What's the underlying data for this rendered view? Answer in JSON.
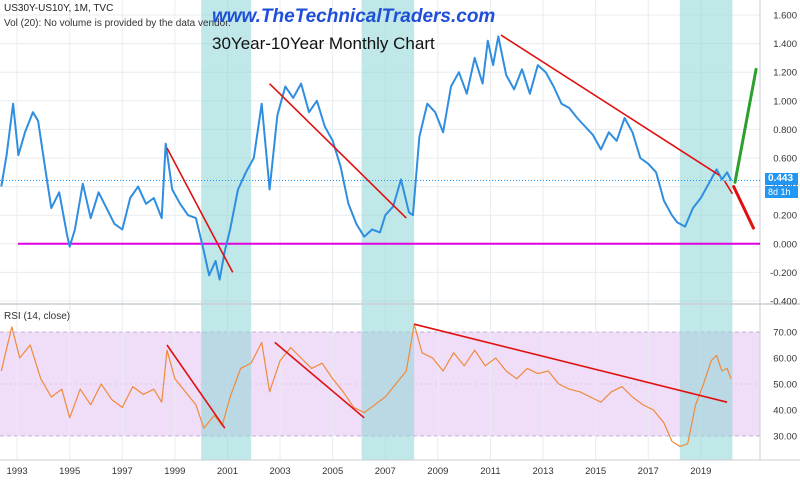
{
  "header": {
    "site": "www.TheTechnicalTraders.com",
    "title": "30Year-10Year Monthly Chart",
    "symbol": "US30Y-US10Y, 1M, TVC",
    "vol_note": "Vol (20): No volume is provided by the data vendor."
  },
  "price_axis": {
    "current_value": "0.443",
    "countdown": "8d 1h"
  },
  "colors": {
    "series": "#2f8ee0",
    "rsi": "#f08a3c",
    "trendline": "#e01010",
    "zero_line": "#e000e0",
    "shade": "#8ed6d6",
    "rsi_band": "#f0ddf8",
    "projection_up": "#2ca02c",
    "projection_down": "#e01010",
    "grid": "#e8ecef",
    "axis_text": "#333333"
  },
  "chart_data": [
    {
      "type": "line",
      "name": "spread",
      "title": "30Year-10Year Monthly Chart",
      "ylim": [
        -0.4,
        1.6
      ],
      "yticks": [
        "1.600",
        "1.400",
        "1.200",
        "1.000",
        "0.800",
        "0.600",
        "0.400",
        "0.200",
        "0.000",
        "-0.200",
        "-0.400"
      ],
      "xlim": [
        1992.35,
        2021.25
      ],
      "xticks": [
        "1993",
        "1995",
        "1997",
        "1999",
        "2001",
        "2003",
        "2005",
        "2007",
        "2009",
        "2011",
        "2013",
        "2015",
        "2017",
        "2019"
      ],
      "current_value": 0.443,
      "horizontal_line": 0.0,
      "shaded_periods": [
        [
          2000.0,
          2001.9
        ],
        [
          2006.1,
          2008.1
        ],
        [
          2018.2,
          2020.2
        ]
      ],
      "series_points": [
        [
          1992.4,
          0.4
        ],
        [
          1992.6,
          0.62
        ],
        [
          1992.85,
          0.98
        ],
        [
          1993.05,
          0.62
        ],
        [
          1993.3,
          0.78
        ],
        [
          1993.6,
          0.92
        ],
        [
          1993.8,
          0.86
        ],
        [
          1994.05,
          0.55
        ],
        [
          1994.3,
          0.25
        ],
        [
          1994.6,
          0.36
        ],
        [
          1994.9,
          0.06
        ],
        [
          1995.0,
          -0.02
        ],
        [
          1995.2,
          0.1
        ],
        [
          1995.5,
          0.42
        ],
        [
          1995.8,
          0.18
        ],
        [
          1996.1,
          0.36
        ],
        [
          1996.4,
          0.25
        ],
        [
          1996.7,
          0.14
        ],
        [
          1997.0,
          0.1
        ],
        [
          1997.3,
          0.32
        ],
        [
          1997.6,
          0.4
        ],
        [
          1997.9,
          0.28
        ],
        [
          1998.2,
          0.32
        ],
        [
          1998.5,
          0.18
        ],
        [
          1998.65,
          0.7
        ],
        [
          1998.9,
          0.38
        ],
        [
          1999.2,
          0.28
        ],
        [
          1999.5,
          0.2
        ],
        [
          1999.8,
          0.18
        ],
        [
          2000.1,
          -0.05
        ],
        [
          2000.3,
          -0.22
        ],
        [
          2000.55,
          -0.12
        ],
        [
          2000.7,
          -0.25
        ],
        [
          2000.9,
          -0.05
        ],
        [
          2001.1,
          0.1
        ],
        [
          2001.4,
          0.38
        ],
        [
          2001.7,
          0.5
        ],
        [
          2002.0,
          0.6
        ],
        [
          2002.3,
          0.98
        ],
        [
          2002.6,
          0.38
        ],
        [
          2002.9,
          0.9
        ],
        [
          2003.2,
          1.1
        ],
        [
          2003.5,
          1.02
        ],
        [
          2003.8,
          1.12
        ],
        [
          2004.1,
          0.92
        ],
        [
          2004.4,
          1.0
        ],
        [
          2004.7,
          0.82
        ],
        [
          2005.0,
          0.72
        ],
        [
          2005.3,
          0.54
        ],
        [
          2005.6,
          0.28
        ],
        [
          2005.9,
          0.14
        ],
        [
          2006.2,
          0.05
        ],
        [
          2006.5,
          0.1
        ],
        [
          2006.8,
          0.08
        ],
        [
          2007.0,
          0.2
        ],
        [
          2007.3,
          0.26
        ],
        [
          2007.6,
          0.45
        ],
        [
          2007.9,
          0.22
        ],
        [
          2008.05,
          0.2
        ],
        [
          2008.3,
          0.75
        ],
        [
          2008.6,
          0.98
        ],
        [
          2008.9,
          0.92
        ],
        [
          2009.2,
          0.78
        ],
        [
          2009.5,
          1.1
        ],
        [
          2009.8,
          1.2
        ],
        [
          2010.1,
          1.05
        ],
        [
          2010.4,
          1.3
        ],
        [
          2010.7,
          1.12
        ],
        [
          2010.9,
          1.42
        ],
        [
          2011.1,
          1.25
        ],
        [
          2011.3,
          1.45
        ],
        [
          2011.6,
          1.18
        ],
        [
          2011.9,
          1.08
        ],
        [
          2012.2,
          1.22
        ],
        [
          2012.5,
          1.05
        ],
        [
          2012.8,
          1.25
        ],
        [
          2013.1,
          1.2
        ],
        [
          2013.4,
          1.1
        ],
        [
          2013.7,
          0.98
        ],
        [
          2014.0,
          0.95
        ],
        [
          2014.3,
          0.88
        ],
        [
          2014.6,
          0.82
        ],
        [
          2014.9,
          0.76
        ],
        [
          2015.2,
          0.66
        ],
        [
          2015.5,
          0.78
        ],
        [
          2015.8,
          0.72
        ],
        [
          2016.1,
          0.88
        ],
        [
          2016.4,
          0.78
        ],
        [
          2016.7,
          0.6
        ],
        [
          2017.0,
          0.56
        ],
        [
          2017.3,
          0.5
        ],
        [
          2017.6,
          0.3
        ],
        [
          2017.9,
          0.2
        ],
        [
          2018.1,
          0.15
        ],
        [
          2018.4,
          0.12
        ],
        [
          2018.7,
          0.25
        ],
        [
          2019.0,
          0.32
        ],
        [
          2019.3,
          0.42
        ],
        [
          2019.6,
          0.52
        ],
        [
          2019.8,
          0.45
        ],
        [
          2020.0,
          0.5
        ],
        [
          2020.15,
          0.443
        ]
      ],
      "trendlines": [
        [
          [
            1998.7,
            0.67
          ],
          [
            2001.2,
            -0.2
          ]
        ],
        [
          [
            2002.6,
            1.12
          ],
          [
            2007.8,
            0.18
          ]
        ],
        [
          [
            2011.4,
            1.46
          ],
          [
            2019.7,
            0.48
          ]
        ],
        [
          [
            2019.9,
            0.44
          ],
          [
            2020.2,
            0.35
          ]
        ]
      ],
      "projections": [
        {
          "direction": "up",
          "points": [
            [
              2020.3,
              0.43
            ],
            [
              2021.1,
              1.22
            ]
          ]
        },
        {
          "direction": "down",
          "points": [
            [
              2020.25,
              0.4
            ],
            [
              2021.0,
              0.11
            ]
          ]
        }
      ]
    },
    {
      "type": "line",
      "name": "RSI",
      "title": "RSI (14, close)",
      "ylim": [
        22,
        78
      ],
      "yticks": [
        "70.00",
        "60.00",
        "50.00",
        "40.00",
        "30.00"
      ],
      "band": [
        30,
        70
      ],
      "series_points": [
        [
          1992.4,
          55
        ],
        [
          1992.8,
          72
        ],
        [
          1993.1,
          60
        ],
        [
          1993.5,
          65
        ],
        [
          1993.9,
          52
        ],
        [
          1994.3,
          45
        ],
        [
          1994.7,
          48
        ],
        [
          1995.0,
          37
        ],
        [
          1995.4,
          48
        ],
        [
          1995.8,
          42
        ],
        [
          1996.2,
          50
        ],
        [
          1996.6,
          44
        ],
        [
          1997.0,
          41
        ],
        [
          1997.4,
          49
        ],
        [
          1997.8,
          46
        ],
        [
          1998.2,
          48
        ],
        [
          1998.5,
          43
        ],
        [
          1998.7,
          63
        ],
        [
          1999.0,
          52
        ],
        [
          1999.4,
          47
        ],
        [
          1999.8,
          42
        ],
        [
          2000.1,
          33
        ],
        [
          2000.5,
          38
        ],
        [
          2000.8,
          34
        ],
        [
          2001.1,
          45
        ],
        [
          2001.5,
          56
        ],
        [
          2001.9,
          58
        ],
        [
          2002.3,
          66
        ],
        [
          2002.6,
          47
        ],
        [
          2003.0,
          59
        ],
        [
          2003.4,
          64
        ],
        [
          2003.8,
          60
        ],
        [
          2004.2,
          56
        ],
        [
          2004.6,
          58
        ],
        [
          2005.0,
          52
        ],
        [
          2005.4,
          47
        ],
        [
          2005.8,
          41
        ],
        [
          2006.2,
          39
        ],
        [
          2006.6,
          42
        ],
        [
          2007.0,
          45
        ],
        [
          2007.4,
          50
        ],
        [
          2007.8,
          55
        ],
        [
          2008.1,
          73
        ],
        [
          2008.4,
          62
        ],
        [
          2008.8,
          60
        ],
        [
          2009.2,
          55
        ],
        [
          2009.6,
          62
        ],
        [
          2010.0,
          57
        ],
        [
          2010.4,
          63
        ],
        [
          2010.8,
          57
        ],
        [
          2011.2,
          60
        ],
        [
          2011.6,
          55
        ],
        [
          2012.0,
          52
        ],
        [
          2012.4,
          56
        ],
        [
          2012.8,
          54
        ],
        [
          2013.2,
          55
        ],
        [
          2013.6,
          50
        ],
        [
          2014.0,
          48
        ],
        [
          2014.4,
          47
        ],
        [
          2014.8,
          45
        ],
        [
          2015.2,
          43
        ],
        [
          2015.6,
          47
        ],
        [
          2016.0,
          49
        ],
        [
          2016.4,
          45
        ],
        [
          2016.8,
          42
        ],
        [
          2017.2,
          40
        ],
        [
          2017.6,
          35
        ],
        [
          2017.9,
          28
        ],
        [
          2018.2,
          26
        ],
        [
          2018.5,
          27
        ],
        [
          2018.8,
          42
        ],
        [
          2019.1,
          50
        ],
        [
          2019.4,
          59
        ],
        [
          2019.6,
          61
        ],
        [
          2019.8,
          55
        ],
        [
          2020.0,
          56
        ],
        [
          2020.15,
          52
        ]
      ],
      "trendlines": [
        [
          [
            1998.7,
            65
          ],
          [
            2000.9,
            33
          ]
        ],
        [
          [
            2002.8,
            66
          ],
          [
            2006.2,
            37
          ]
        ],
        [
          [
            2008.1,
            73
          ],
          [
            2020.0,
            43
          ]
        ]
      ]
    }
  ]
}
